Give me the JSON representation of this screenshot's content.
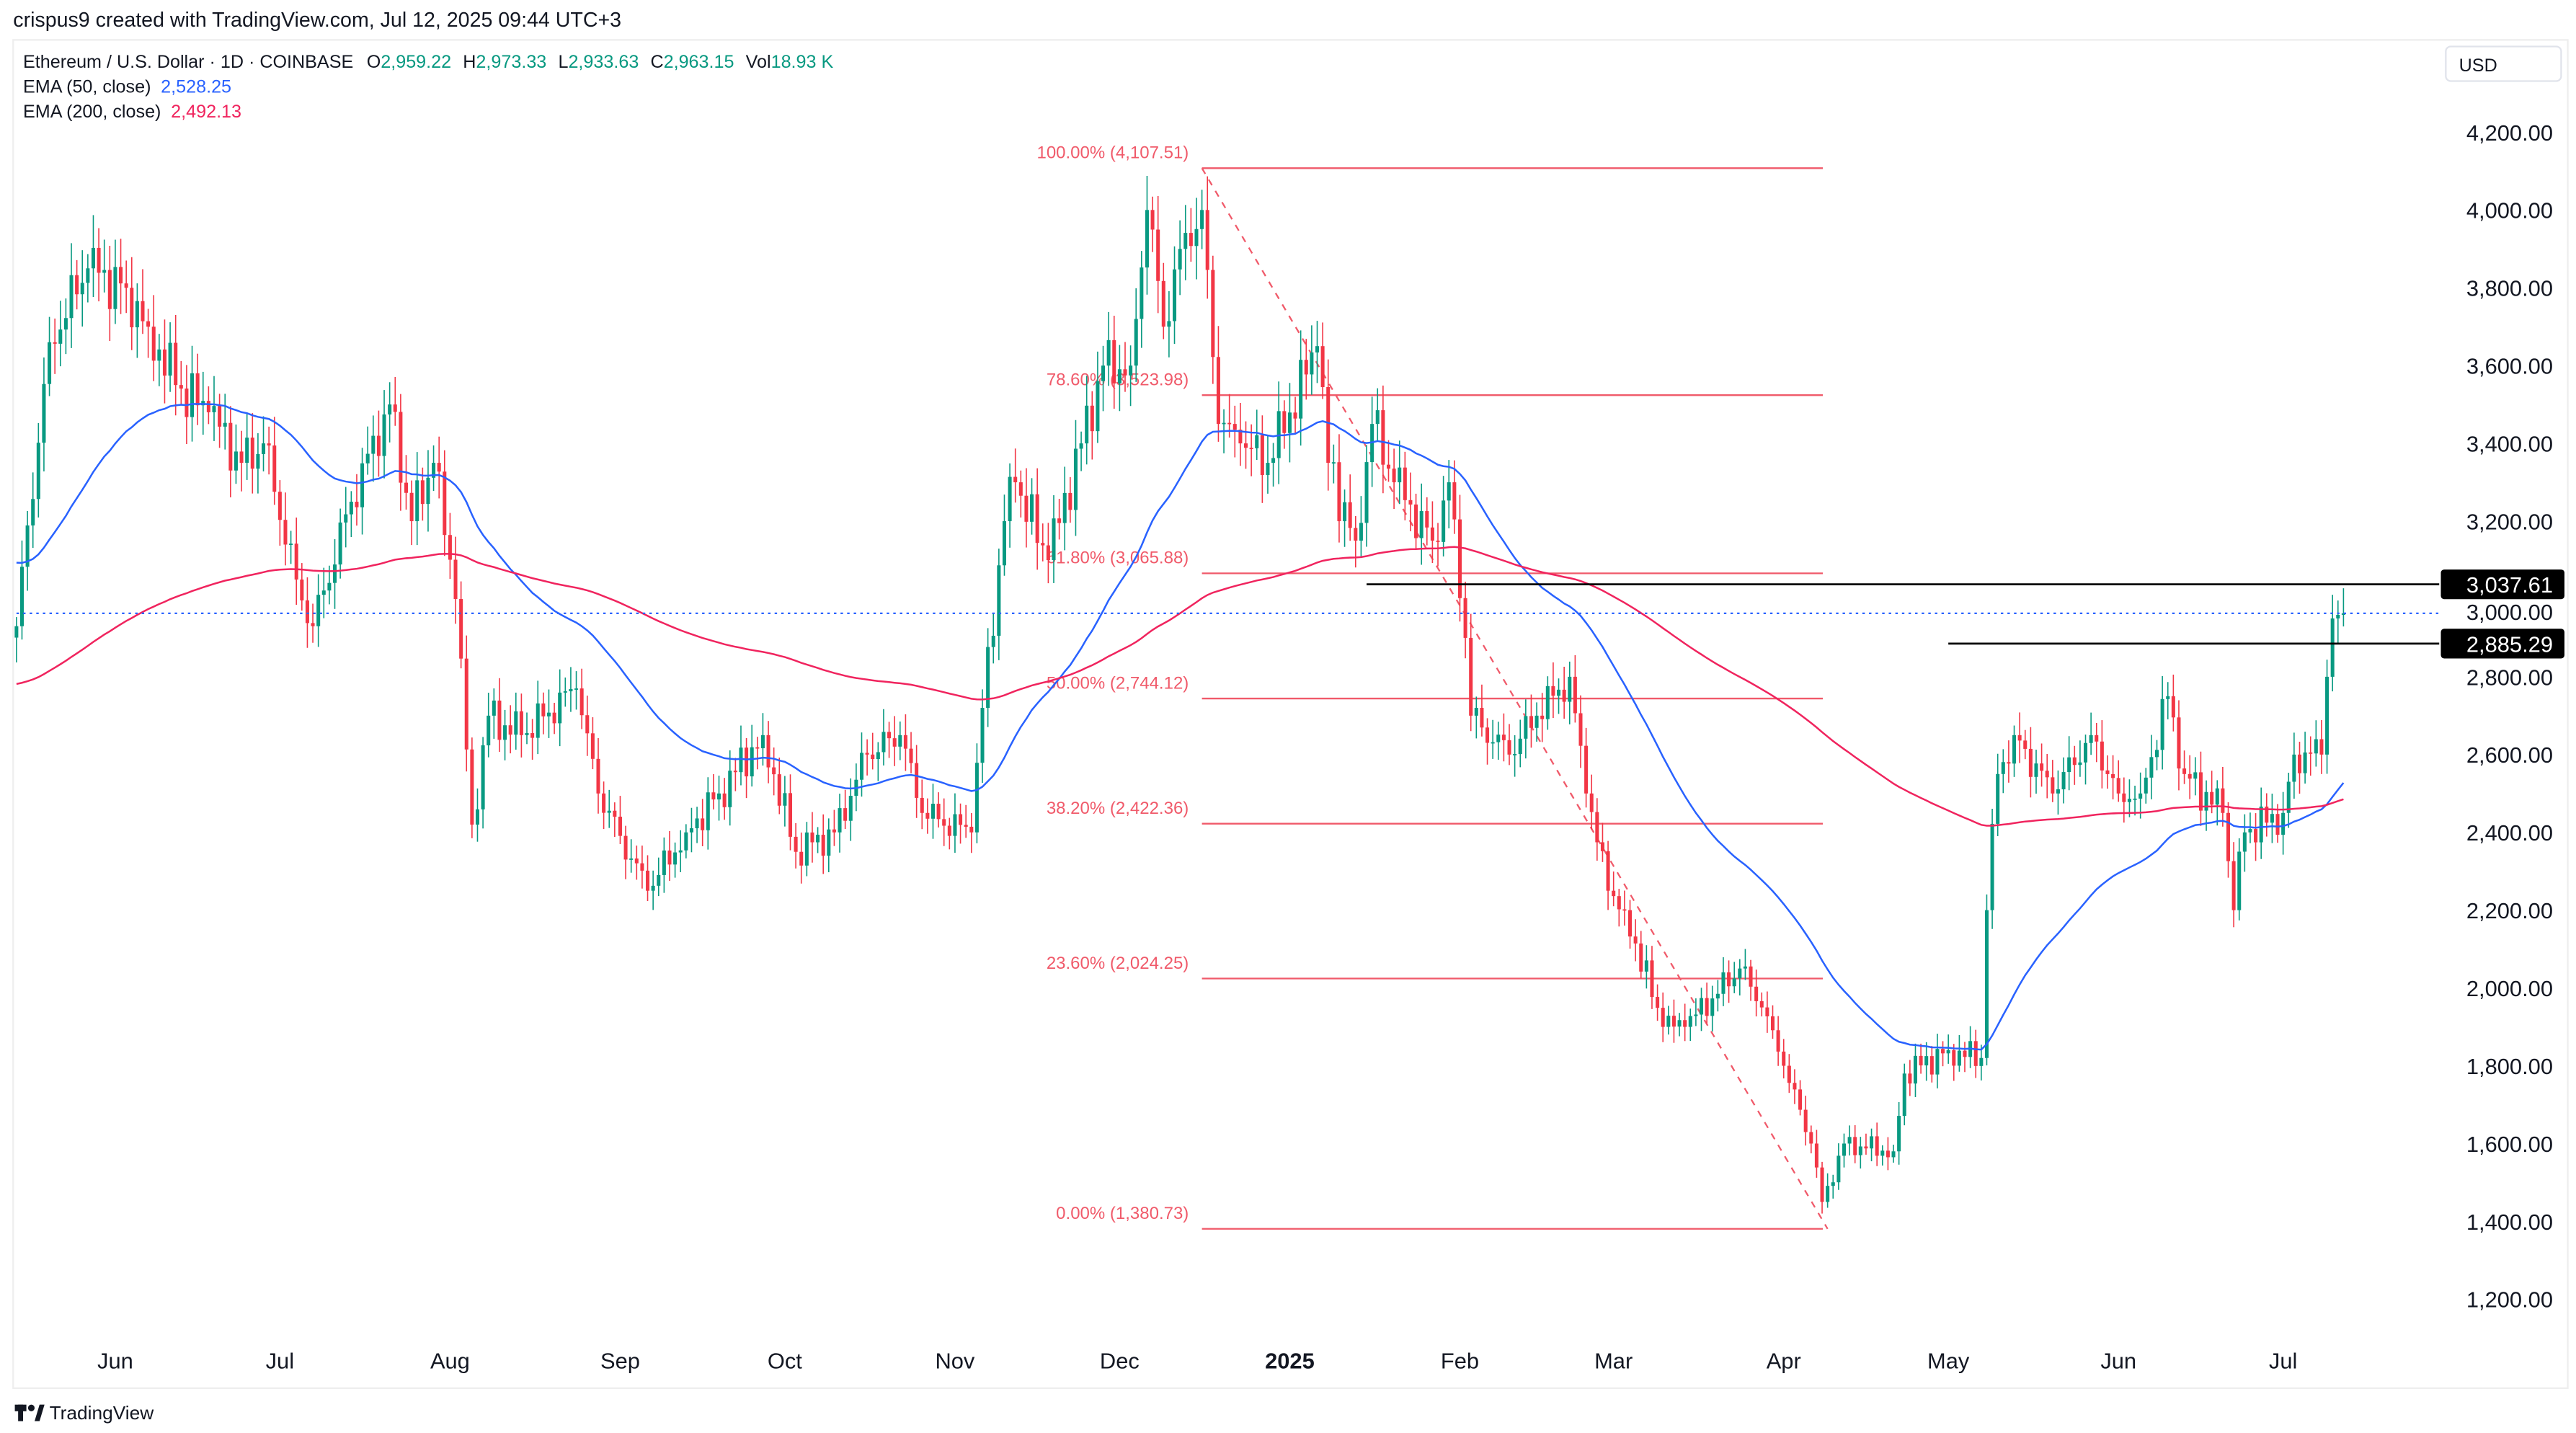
{
  "attribution": "crispus9 created with TradingView.com, Jul 12, 2025 09:44 UTC+3",
  "legend": {
    "symbol": "Ethereum / U.S. Dollar · 1D · COINBASE",
    "o_label": "O",
    "o": "2,959.22",
    "h_label": "H",
    "h": "2,973.33",
    "l_label": "L",
    "l": "2,933.63",
    "c_label": "C",
    "c": "2,963.15",
    "vol_label": "Vol",
    "vol": "18.93 K",
    "ema50_label": "EMA (50, close)",
    "ema50": "2,528.25",
    "ema200_label": "EMA (200, close)",
    "ema200": "2,492.13"
  },
  "currency": "USD",
  "footer_logo": "TradingView",
  "colors": {
    "up": "#089981",
    "down": "#f23645",
    "ema50": "#2962ff",
    "ema200": "#f0245e",
    "fib": "#f05a6a",
    "price_line": "#2962ff"
  },
  "chart_data": {
    "type": "candlestick",
    "title": "Ethereum / U.S. Dollar · 1D · COINBASE",
    "ylim": [
      1200,
      4200
    ],
    "y_ticks": [
      "1,200.00",
      "1,400.00",
      "1,600.00",
      "1,800.00",
      "2,000.00",
      "2,200.00",
      "2,400.00",
      "2,600.00",
      "2,800.00",
      "3,000.00",
      "3,200.00",
      "3,400.00",
      "3,600.00",
      "3,800.00",
      "4,000.00",
      "4,200.00"
    ],
    "x_ticks": [
      {
        "label": "Jun",
        "date": "2024-06-01"
      },
      {
        "label": "Jul",
        "date": "2024-07-01"
      },
      {
        "label": "Aug",
        "date": "2024-08-01"
      },
      {
        "label": "Sep",
        "date": "2024-09-01"
      },
      {
        "label": "Oct",
        "date": "2024-10-01"
      },
      {
        "label": "Nov",
        "date": "2024-11-01"
      },
      {
        "label": "Dec",
        "date": "2024-12-01"
      },
      {
        "label": "2025",
        "date": "2025-01-01"
      },
      {
        "label": "Feb",
        "date": "2025-02-01"
      },
      {
        "label": "Mar",
        "date": "2025-03-01"
      },
      {
        "label": "Apr",
        "date": "2025-04-01"
      },
      {
        "label": "May",
        "date": "2025-05-01"
      },
      {
        "label": "Jun",
        "date": "2025-06-01"
      },
      {
        "label": "Jul",
        "date": "2025-07-01"
      }
    ],
    "x_range": [
      "2024-05-14",
      "2025-07-12"
    ],
    "approx_close_path": [
      [
        "2024-05-14",
        2930
      ],
      [
        "2024-05-20",
        3660
      ],
      [
        "2024-05-27",
        3850
      ],
      [
        "2024-06-03",
        3800
      ],
      [
        "2024-06-07",
        3700
      ],
      [
        "2024-06-12",
        3550
      ],
      [
        "2024-06-18",
        3480
      ],
      [
        "2024-06-24",
        3350
      ],
      [
        "2024-06-28",
        3400
      ],
      [
        "2024-07-04",
        3050
      ],
      [
        "2024-07-07",
        2930
      ],
      [
        "2024-07-14",
        3250
      ],
      [
        "2024-07-21",
        3500
      ],
      [
        "2024-07-25",
        3200
      ],
      [
        "2024-07-29",
        3350
      ],
      [
        "2024-08-02",
        3000
      ],
      [
        "2024-08-05",
        2420
      ],
      [
        "2024-08-08",
        2700
      ],
      [
        "2024-08-14",
        2650
      ],
      [
        "2024-08-24",
        2770
      ],
      [
        "2024-08-28",
        2500
      ],
      [
        "2024-09-06",
        2250
      ],
      [
        "2024-09-13",
        2400
      ],
      [
        "2024-09-19",
        2500
      ],
      [
        "2024-09-27",
        2650
      ],
      [
        "2024-10-03",
        2350
      ],
      [
        "2024-10-10",
        2400
      ],
      [
        "2024-10-16",
        2600
      ],
      [
        "2024-10-22",
        2650
      ],
      [
        "2024-10-26",
        2450
      ],
      [
        "2024-11-04",
        2400
      ],
      [
        "2024-11-06",
        2720
      ],
      [
        "2024-11-10",
        3200
      ],
      [
        "2024-11-12",
        3300
      ],
      [
        "2024-11-18",
        3100
      ],
      [
        "2024-11-24",
        3400
      ],
      [
        "2024-11-28",
        3600
      ],
      [
        "2024-12-03",
        3600
      ],
      [
        "2024-12-06",
        4000
      ],
      [
        "2024-12-09",
        3700
      ],
      [
        "2024-12-12",
        3900
      ],
      [
        "2024-12-16",
        4000
      ],
      [
        "2024-12-19",
        3450
      ],
      [
        "2024-12-23",
        3400
      ],
      [
        "2024-12-28",
        3350
      ],
      [
        "2025-01-06",
        3650
      ],
      [
        "2025-01-08",
        3350
      ],
      [
        "2025-01-13",
        3150
      ],
      [
        "2025-01-16",
        3450
      ],
      [
        "2025-01-20",
        3300
      ],
      [
        "2025-01-27",
        3150
      ],
      [
        "2025-01-30",
        3300
      ],
      [
        "2025-02-02",
        2900
      ],
      [
        "2025-02-03",
        2700
      ],
      [
        "2025-02-10",
        2600
      ],
      [
        "2025-02-15",
        2700
      ],
      [
        "2025-02-21",
        2800
      ],
      [
        "2025-02-24",
        2500
      ],
      [
        "2025-02-28",
        2250
      ],
      [
        "2025-03-03",
        2200
      ],
      [
        "2025-03-10",
        1900
      ],
      [
        "2025-03-14",
        1900
      ],
      [
        "2025-03-24",
        2050
      ],
      [
        "2025-03-28",
        1950
      ],
      [
        "2025-04-01",
        1800
      ],
      [
        "2025-04-06",
        1600
      ],
      [
        "2025-04-08",
        1450
      ],
      [
        "2025-04-12",
        1600
      ],
      [
        "2025-04-21",
        1580
      ],
      [
        "2025-04-23",
        1780
      ],
      [
        "2025-05-01",
        1840
      ],
      [
        "2025-05-07",
        1820
      ],
      [
        "2025-05-08",
        2200
      ],
      [
        "2025-05-10",
        2550
      ],
      [
        "2025-05-13",
        2650
      ],
      [
        "2025-05-20",
        2500
      ],
      [
        "2025-05-27",
        2650
      ],
      [
        "2025-06-01",
        2500
      ],
      [
        "2025-06-05",
        2500
      ],
      [
        "2025-06-10",
        2750
      ],
      [
        "2025-06-13",
        2550
      ],
      [
        "2025-06-20",
        2450
      ],
      [
        "2025-06-22",
        2200
      ],
      [
        "2025-06-24",
        2400
      ],
      [
        "2025-07-01",
        2450
      ],
      [
        "2025-07-03",
        2600
      ],
      [
        "2025-07-08",
        2600
      ],
      [
        "2025-07-09",
        2800
      ],
      [
        "2025-07-10",
        2950
      ],
      [
        "2025-07-11",
        2959.22
      ],
      [
        "2025-07-12",
        2963.15
      ]
    ],
    "fib_retracement": {
      "from": {
        "date": "2024-12-16",
        "price": 4107.51
      },
      "to": {
        "date": "2025-04-09",
        "price": 1380.73
      },
      "levels": [
        {
          "label": "100.00% (4,107.51)",
          "price": 4107.51
        },
        {
          "label": "78.60% (3,523.98)",
          "price": 3523.98
        },
        {
          "label": "61.80% (3,065.88)",
          "price": 3065.88
        },
        {
          "label": "50.00% (2,744.12)",
          "price": 2744.12
        },
        {
          "label": "38.20% (2,422.36)",
          "price": 2422.36
        },
        {
          "label": "23.60% (2,024.25)",
          "price": 2024.25
        },
        {
          "label": "0.00% (1,380.73)",
          "price": 1380.73
        }
      ]
    },
    "horizontal_lines": [
      {
        "label": "3,037.61",
        "price": 3037.61,
        "from": "2025-01-15"
      },
      {
        "label": "2,885.29",
        "price": 2885.29,
        "from": "2025-05-01"
      }
    ],
    "last_price": 2963.15,
    "ema_50_last": 2528.25,
    "ema_200_last": 2492.13
  }
}
